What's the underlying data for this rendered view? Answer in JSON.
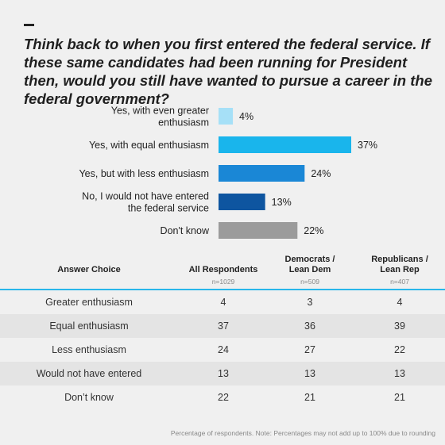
{
  "title": "Think back to when you first entered the federal service. If these same candidates had been running for President then, would you still have wanted to pursue a career in the federal government?",
  "chart_data": {
    "type": "bar",
    "orientation": "horizontal",
    "categories": [
      [
        "Yes, with even greater",
        "enthusiasm"
      ],
      [
        "Yes, with equal enthusiasm"
      ],
      [
        "Yes, but with less enthusiasm"
      ],
      [
        "No, I would not have entered",
        "the federal service"
      ],
      [
        "Don't know"
      ]
    ],
    "values": [
      4,
      37,
      24,
      13,
      22
    ],
    "value_labels": [
      "4%",
      "37%",
      "24%",
      "13%",
      "22%"
    ],
    "colors": [
      "#a6e0f7",
      "#19b5ec",
      "#1a87d6",
      "#0e55a0",
      "#9b9b9b"
    ],
    "xlim": [
      0,
      37
    ],
    "grid": false,
    "legend": "none"
  },
  "table": {
    "headers": [
      {
        "label": "Answer Choice",
        "n": ""
      },
      {
        "label": "All Respondents",
        "n": "n=1029"
      },
      {
        "label": "Democrats /\nLean Dem",
        "n": "n=509"
      },
      {
        "label": "Republicans /\nLean Rep",
        "n": "n=407"
      }
    ],
    "rows": [
      [
        "Greater enthusiasm",
        "4",
        "3",
        "4"
      ],
      [
        "Equal enthusiasm",
        "37",
        "36",
        "39"
      ],
      [
        "Less enthusiasm",
        "24",
        "27",
        "22"
      ],
      [
        "Would not have entered",
        "13",
        "13",
        "13"
      ],
      [
        "Don’t know",
        "22",
        "21",
        "21"
      ]
    ]
  },
  "footnote": "Percentage of respondents. Note: Percentages may not add up to 100% due to rounding"
}
